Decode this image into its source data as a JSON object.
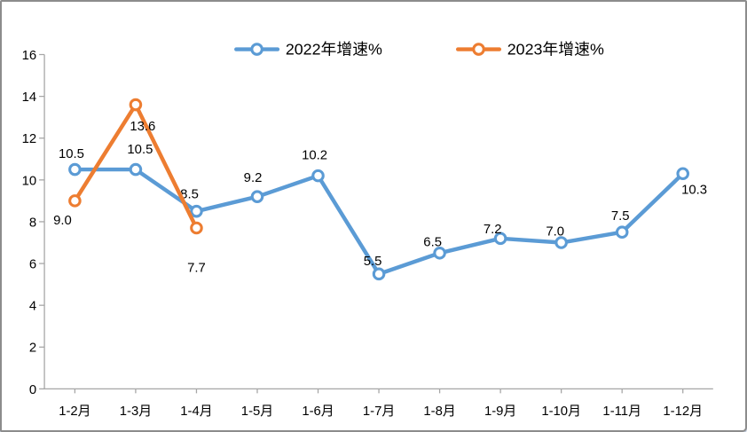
{
  "chart_data": {
    "type": "line",
    "title": "",
    "xlabel": "",
    "ylabel": "",
    "categories": [
      "1-2月",
      "1-3月",
      "1-4月",
      "1-5月",
      "1-6月",
      "1-7月",
      "1-8月",
      "1-9月",
      "1-10月",
      "1-11月",
      "1-12月"
    ],
    "series": [
      {
        "name": "2022年增速%",
        "color": "#5B9BD5",
        "values": [
          10.5,
          10.5,
          8.5,
          9.2,
          10.2,
          5.5,
          6.5,
          7.2,
          7.0,
          7.5,
          10.3
        ],
        "labels": [
          "10.5",
          "10.5",
          "8.5",
          "9.2",
          "10.2",
          "5.5",
          "6.5",
          "7.2",
          "7.0",
          "7.5",
          "10.3"
        ],
        "label_offsets": [
          [
            -4,
            -13
          ],
          [
            5,
            -18
          ],
          [
            -8,
            -15
          ],
          [
            -5,
            -17
          ],
          [
            -4,
            -19
          ],
          [
            -7,
            -10
          ],
          [
            -8,
            -8
          ],
          [
            -9,
            -6
          ],
          [
            -7,
            -8
          ],
          [
            -2,
            -14
          ],
          [
            13,
            23
          ]
        ]
      },
      {
        "name": "2023年增速%",
        "color": "#ED7D31",
        "values": [
          9.0,
          13.6,
          7.7
        ],
        "labels": [
          "9.0",
          "13.6",
          "7.7"
        ],
        "label_offsets": [
          [
            -14,
            27
          ],
          [
            8,
            29
          ],
          [
            0,
            50
          ]
        ]
      }
    ],
    "ylim": [
      0,
      16
    ],
    "yticks": [
      0,
      2,
      4,
      6,
      8,
      10,
      12,
      14,
      16
    ],
    "grid": false,
    "legend_position": "top",
    "marker_style": "open-circle",
    "axis_color": "#A6A6A6",
    "text_color": "#000000",
    "background_color": "#FFFFFF"
  }
}
